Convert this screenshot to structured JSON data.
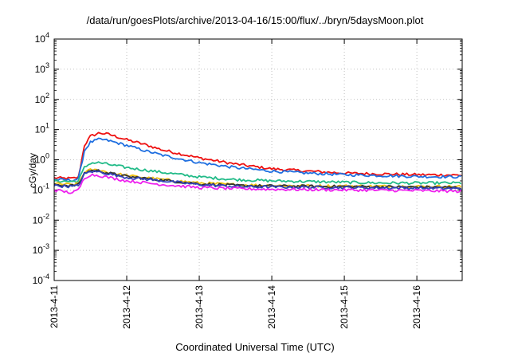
{
  "chart_data": {
    "type": "line",
    "title": "/data/run/goesPlots/archive/2013-04-16/15:00/flux/../bryn/5daysMoon.plot",
    "xlabel": "Coordinated Universal Time (UTC)",
    "ylabel": "cGy/day",
    "y_scale": "log",
    "ylim": [
      0.0001,
      10000
    ],
    "y_ticks": [
      {
        "value": 0.0001,
        "base": "10",
        "exp": "-4"
      },
      {
        "value": 0.001,
        "base": "10",
        "exp": "-3"
      },
      {
        "value": 0.01,
        "base": "10",
        "exp": "-2"
      },
      {
        "value": 0.1,
        "base": "10",
        "exp": "-1"
      },
      {
        "value": 1,
        "base": "10",
        "exp": "0"
      },
      {
        "value": 10,
        "base": "10",
        "exp": "1"
      },
      {
        "value": 100,
        "base": "10",
        "exp": "2"
      },
      {
        "value": 1000,
        "base": "10",
        "exp": "3"
      },
      {
        "value": 10000,
        "base": "10",
        "exp": "4"
      }
    ],
    "xlim": [
      "2013-04-11 00:00",
      "2013-04-16 15:00"
    ],
    "x_ticks": [
      "2013-4-11",
      "2013-4-12",
      "2013-4-13",
      "2013-4-14",
      "2013-4-15",
      "2013-4-16"
    ],
    "grid": true,
    "series": [
      {
        "color": "#ee1111",
        "x": [
          "2013-04-11 00:00",
          "2013-04-11 06:00",
          "2013-04-11 08:00",
          "2013-04-11 10:00",
          "2013-04-11 12:00",
          "2013-04-11 15:00",
          "2013-04-11 18:00",
          "2013-04-12 00:00",
          "2013-04-12 06:00",
          "2013-04-12 12:00",
          "2013-04-13 00:00",
          "2013-04-13 12:00",
          "2013-04-14 00:00",
          "2013-04-14 12:00",
          "2013-04-15 00:00",
          "2013-04-15 12:00",
          "2013-04-16 00:00",
          "2013-04-16 15:00"
        ],
        "values": [
          0.25,
          0.24,
          0.26,
          3.0,
          6.0,
          7.8,
          7.0,
          4.6,
          3.2,
          2.1,
          1.15,
          0.72,
          0.5,
          0.42,
          0.36,
          0.34,
          0.32,
          0.31
        ]
      },
      {
        "color": "#1f6fe0",
        "x": [
          "2013-04-11 00:00",
          "2013-04-11 06:00",
          "2013-04-11 08:00",
          "2013-04-11 10:00",
          "2013-04-11 12:00",
          "2013-04-11 15:00",
          "2013-04-11 18:00",
          "2013-04-12 00:00",
          "2013-04-12 06:00",
          "2013-04-12 12:00",
          "2013-04-13 00:00",
          "2013-04-13 12:00",
          "2013-04-14 00:00",
          "2013-04-14 12:00",
          "2013-04-15 00:00",
          "2013-04-15 12:00",
          "2013-04-16 00:00",
          "2013-04-16 15:00"
        ],
        "values": [
          0.22,
          0.21,
          0.23,
          2.0,
          3.8,
          4.8,
          4.3,
          3.0,
          2.0,
          1.4,
          0.8,
          0.55,
          0.42,
          0.36,
          0.32,
          0.3,
          0.28,
          0.27
        ]
      },
      {
        "color": "#22bb88",
        "x": [
          "2013-04-11 00:00",
          "2013-04-11 06:00",
          "2013-04-11 08:00",
          "2013-04-11 10:00",
          "2013-04-11 12:00",
          "2013-04-11 15:00",
          "2013-04-11 18:00",
          "2013-04-12 00:00",
          "2013-04-12 12:00",
          "2013-04-13 00:00",
          "2013-04-13 12:00",
          "2013-04-14 00:00",
          "2013-04-14 12:00",
          "2013-04-15 00:00",
          "2013-04-15 12:00",
          "2013-04-16 00:00",
          "2013-04-16 15:00"
        ],
        "values": [
          0.2,
          0.19,
          0.2,
          0.55,
          0.78,
          0.8,
          0.7,
          0.55,
          0.38,
          0.27,
          0.22,
          0.2,
          0.19,
          0.18,
          0.17,
          0.17,
          0.17
        ]
      },
      {
        "color": "#f0c010",
        "x": [
          "2013-04-11 00:00",
          "2013-04-11 06:00",
          "2013-04-11 08:00",
          "2013-04-11 10:00",
          "2013-04-11 12:00",
          "2013-04-11 15:00",
          "2013-04-11 18:00",
          "2013-04-12 00:00",
          "2013-04-12 12:00",
          "2013-04-13 00:00",
          "2013-04-13 12:00",
          "2013-04-14 00:00",
          "2013-04-15 00:00",
          "2013-04-16 00:00",
          "2013-04-16 15:00"
        ],
        "values": [
          0.16,
          0.15,
          0.16,
          0.38,
          0.46,
          0.45,
          0.38,
          0.3,
          0.22,
          0.17,
          0.15,
          0.14,
          0.135,
          0.13,
          0.13
        ]
      },
      {
        "color": "#333333",
        "x": [
          "2013-04-11 00:00",
          "2013-04-11 06:00",
          "2013-04-11 08:00",
          "2013-04-11 10:00",
          "2013-04-11 12:00",
          "2013-04-11 15:00",
          "2013-04-11 18:00",
          "2013-04-12 00:00",
          "2013-04-12 12:00",
          "2013-04-13 00:00",
          "2013-04-13 12:00",
          "2013-04-14 00:00",
          "2013-04-15 00:00",
          "2013-04-16 00:00",
          "2013-04-16 15:00"
        ],
        "values": [
          0.15,
          0.14,
          0.15,
          0.36,
          0.44,
          0.43,
          0.36,
          0.28,
          0.21,
          0.16,
          0.14,
          0.135,
          0.13,
          0.125,
          0.12
        ]
      },
      {
        "color": "#3344bb",
        "x": [
          "2013-04-11 00:00",
          "2013-04-11 06:00",
          "2013-04-11 08:00",
          "2013-04-11 10:00",
          "2013-04-11 12:00",
          "2013-04-11 15:00",
          "2013-04-11 18:00",
          "2013-04-12 00:00",
          "2013-04-12 12:00",
          "2013-04-13 00:00",
          "2013-04-13 12:00",
          "2013-04-14 00:00",
          "2013-04-15 00:00",
          "2013-04-16 00:00",
          "2013-04-16 15:00"
        ],
        "values": [
          0.14,
          0.13,
          0.14,
          0.33,
          0.41,
          0.4,
          0.34,
          0.26,
          0.2,
          0.15,
          0.13,
          0.125,
          0.12,
          0.115,
          0.11
        ]
      },
      {
        "color": "#ee22ee",
        "x": [
          "2013-04-11 00:00",
          "2013-04-11 06:00",
          "2013-04-11 08:00",
          "2013-04-11 10:00",
          "2013-04-11 12:00",
          "2013-04-11 15:00",
          "2013-04-11 18:00",
          "2013-04-12 00:00",
          "2013-04-12 12:00",
          "2013-04-13 00:00",
          "2013-04-13 12:00",
          "2013-04-14 00:00",
          "2013-04-15 00:00",
          "2013-04-16 00:00",
          "2013-04-16 15:00"
        ],
        "values": [
          0.1,
          0.08,
          0.1,
          0.25,
          0.32,
          0.3,
          0.26,
          0.2,
          0.15,
          0.12,
          0.11,
          0.105,
          0.1,
          0.095,
          0.09
        ]
      }
    ]
  }
}
